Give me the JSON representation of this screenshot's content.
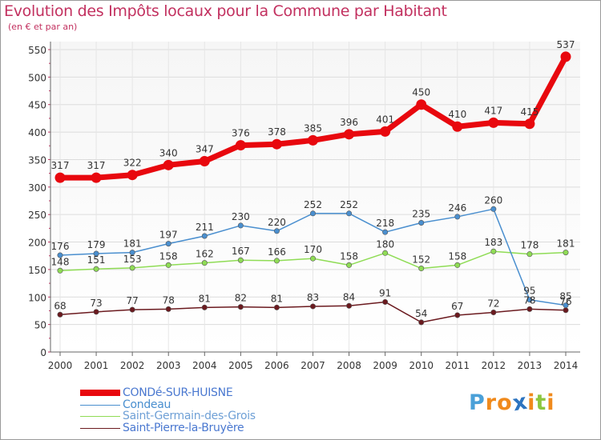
{
  "title": "Evolution des Impôts locaux pour la Commune par Habitant",
  "subtitle": "(en € et par an)",
  "logo": {
    "text": "Proxiti",
    "letters": [
      "P",
      "r",
      "o",
      "x",
      "i",
      "t",
      "i"
    ],
    "colors": [
      "#4aa0d8",
      "#f08a1c",
      "#f08a1c",
      "#2d74c0",
      "#f08a1c",
      "#8cc63f",
      "#f08a1c"
    ]
  },
  "chart_data": {
    "type": "line",
    "categories": [
      "2000",
      "2001",
      "2002",
      "2003",
      "2004",
      "2005",
      "2006",
      "2007",
      "2008",
      "2009",
      "2010",
      "2011",
      "2012",
      "2013",
      "2014"
    ],
    "ylim": [
      0,
      550
    ],
    "yticks": [
      "0",
      "50",
      "100",
      "150",
      "200",
      "250",
      "300",
      "350",
      "400",
      "450",
      "500",
      "550"
    ],
    "grid": true,
    "legend_position": "bottom-left",
    "series": [
      {
        "name": "CONDé-SUR-HUISNE",
        "color": "#e8080e",
        "values": [
          317,
          317,
          322,
          340,
          347,
          376,
          378,
          385,
          396,
          401,
          450,
          410,
          417,
          415,
          537
        ],
        "labels": [
          "317",
          "317",
          "322",
          "340",
          "347",
          "376",
          "378",
          "385",
          "396",
          "401",
          "450",
          "410",
          "417",
          "415",
          "537"
        ]
      },
      {
        "name": "Condeau",
        "color": "#4a8fcf",
        "values": [
          176,
          179,
          181,
          197,
          211,
          230,
          220,
          252,
          252,
          218,
          235,
          246,
          260,
          95,
          85
        ],
        "labels": [
          "176",
          "179",
          "181",
          "197",
          "211",
          "230",
          "220",
          "252",
          "252",
          "218",
          "235",
          "246",
          "260",
          "95",
          "85"
        ]
      },
      {
        "name": "Saint-Germain-des-Grois",
        "color": "#8fdc55",
        "values": [
          148,
          151,
          153,
          158,
          162,
          167,
          166,
          170,
          158,
          180,
          152,
          158,
          183,
          178,
          181
        ],
        "labels": [
          "148",
          "151",
          "153",
          "158",
          "162",
          "167",
          "166",
          "170",
          "158",
          "180",
          "152",
          "158",
          "183",
          "178",
          "181"
        ]
      },
      {
        "name": "Saint-Pierre-la-Bruyère",
        "color": "#6b1a1f",
        "values": [
          68,
          73,
          77,
          78,
          81,
          82,
          81,
          83,
          84,
          91,
          54,
          67,
          72,
          78,
          76
        ],
        "labels": [
          "68",
          "73",
          "77",
          "78",
          "81",
          "82",
          "81",
          "83",
          "84",
          "91",
          "54",
          "67",
          "72",
          "78",
          "76"
        ]
      }
    ]
  }
}
